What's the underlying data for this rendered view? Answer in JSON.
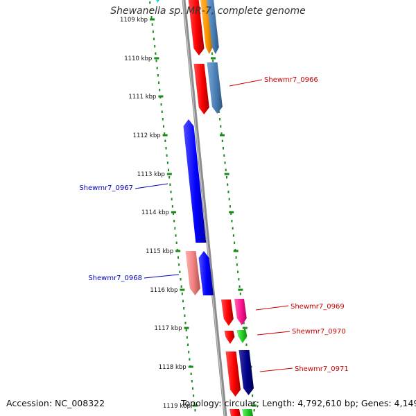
{
  "title": "Shewanella sp. MR-7, complete genome",
  "footer": {
    "accession": "Accession: NC_008322",
    "topology": "Topology: circular; Length: 4,792,610 bp; Genes: 4,149"
  },
  "ticks": [
    "1109 kbp",
    "1110 kbp",
    "1111 kbp",
    "1112 kbp",
    "1113 kbp",
    "1114 kbp",
    "1115 kbp",
    "1116 kbp",
    "1117 kbp",
    "1118 kbp",
    "1119 kbp"
  ],
  "gene_labels": [
    {
      "name": "Shewmr7_0966",
      "strand": "reverse",
      "color": "#cc0000"
    },
    {
      "name": "Shewmr7_0967",
      "strand": "forward",
      "color": "#0000bb"
    },
    {
      "name": "Shewmr7_0968",
      "strand": "forward",
      "color": "#0000bb"
    },
    {
      "name": "Shewmr7_0969",
      "strand": "reverse",
      "color": "#cc0000"
    },
    {
      "name": "Shewmr7_0970",
      "strand": "reverse",
      "color": "#cc0000"
    },
    {
      "name": "Shewmr7_0971",
      "strand": "reverse",
      "color": "#cc0000"
    }
  ],
  "colors": {
    "backbone": "#8c8c8c",
    "tick_dots": "#1a8a1a",
    "red": "#ff0000",
    "blue": "#0000ff",
    "steelblue": "#4a7fb5",
    "orange": "#ff9900",
    "pink": "#f08080",
    "magenta": "#ff1493",
    "green": "#22cc22",
    "navy": "#000088",
    "cyan": "#00e5ee"
  }
}
